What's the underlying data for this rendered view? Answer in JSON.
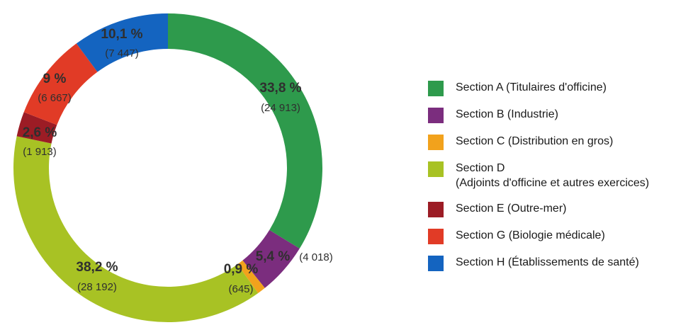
{
  "chart_data": {
    "type": "pie",
    "style": "donut",
    "slices": [
      {
        "key": "A",
        "percent": "33,8 %",
        "count": "(24 913)",
        "value": 24913,
        "color": "#2e9a4c",
        "legend": [
          "Section A (Titulaires d'officine)"
        ]
      },
      {
        "key": "B",
        "percent": "5,4 %",
        "count": "(4 018)",
        "value": 4018,
        "color": "#7b2d7e",
        "legend": [
          "Section B (Industrie)"
        ]
      },
      {
        "key": "C",
        "percent": "0,9 %",
        "count": "(645)",
        "value": 645,
        "color": "#f2a21c",
        "legend": [
          "Section C (Distribution en gros)"
        ]
      },
      {
        "key": "D",
        "percent": "38,2 %",
        "count": "(28 192)",
        "value": 28192,
        "color": "#a8c224",
        "legend": [
          "Section D",
          "(Adjoints d'officine et autres exercices)"
        ]
      },
      {
        "key": "E",
        "percent": "2,6 %",
        "count": "(1 913)",
        "value": 1913,
        "color": "#9c1c25",
        "legend": [
          "Section E (Outre-mer)"
        ]
      },
      {
        "key": "G",
        "percent": "9 %",
        "count": "(6 667)",
        "value": 6667,
        "color": "#e13b26",
        "legend": [
          "Section G (Biologie médicale)"
        ]
      },
      {
        "key": "H",
        "percent": "10,1 %",
        "count": "(7 447)",
        "value": 7447,
        "color": "#1464c0",
        "legend": [
          "Section H  (Établissements de santé)"
        ]
      }
    ],
    "legend_position": "right"
  }
}
